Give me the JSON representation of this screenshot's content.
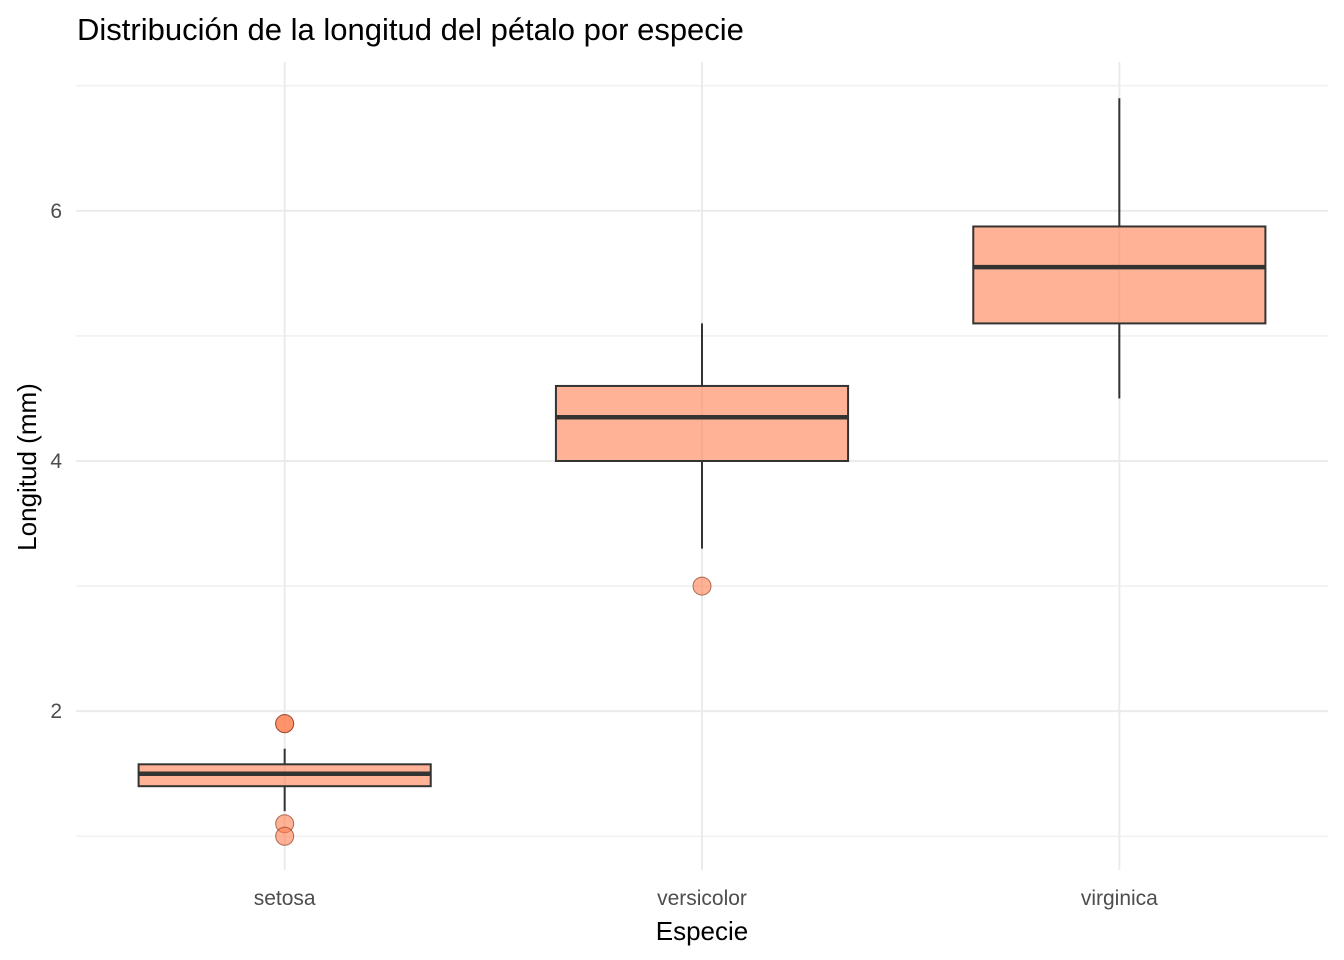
{
  "chart_data": {
    "type": "boxplot",
    "title": "Distribución de la longitud del pétalo por especie",
    "xlabel": "Especie",
    "ylabel": "Longitud (mm)",
    "ylim": [
      0.73,
      7.19
    ],
    "y_major_ticks": [
      2,
      4,
      6
    ],
    "y_minor_gridlines": [
      1,
      3,
      5,
      7
    ],
    "y_tick_labels": [
      "2",
      "4",
      "6"
    ],
    "grid": true,
    "categories": [
      "setosa",
      "versicolor",
      "virginica"
    ],
    "fill_color": "#FF7F50",
    "fill_opacity": 0.6,
    "line_color": "#333333",
    "series": [
      {
        "name": "setosa",
        "whisker_low": 1.2,
        "q1": 1.4,
        "median": 1.5,
        "q3": 1.575,
        "whisker_high": 1.7,
        "outliers": [
          1.9,
          1.9,
          1.1,
          1.0
        ]
      },
      {
        "name": "versicolor",
        "whisker_low": 3.3,
        "q1": 4.0,
        "median": 4.35,
        "q3": 4.6,
        "whisker_high": 5.1,
        "outliers": [
          3.0
        ]
      },
      {
        "name": "virginica",
        "whisker_low": 4.5,
        "q1": 5.1,
        "median": 5.55,
        "q3": 5.875,
        "whisker_high": 6.9,
        "outliers": []
      }
    ]
  }
}
